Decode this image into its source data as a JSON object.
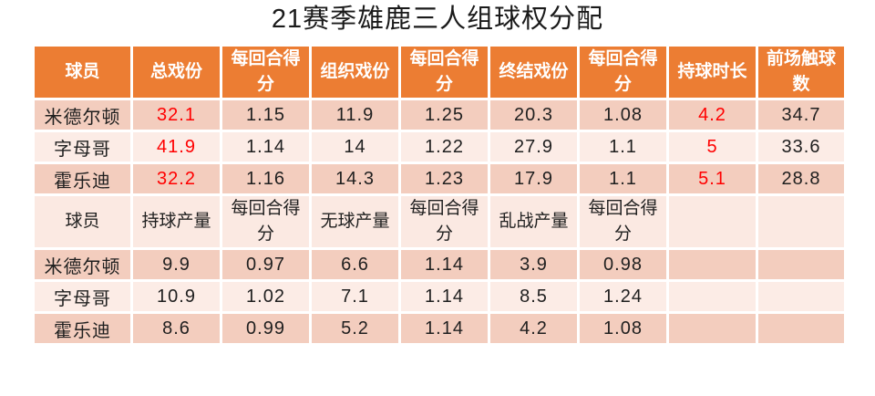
{
  "title": "21赛季雄鹿三人组球权分配",
  "colors": {
    "header_bg": "#EC7D33",
    "header_text": "#FFFFFF",
    "band_dark": "#F3CDBE",
    "band_light": "#FCECE6",
    "plain_header_bg": "#FBE9E2",
    "text": "#1F1F1F",
    "highlight_red": "#FF0000"
  },
  "table": {
    "sections": [
      {
        "header_variant": "accent",
        "columns": [
          "球员",
          "总戏份",
          "每回合得分",
          "组织戏份",
          "每回合得分",
          "终结戏份",
          "每回合得分",
          "持球时长",
          "前场触球数"
        ],
        "rows": [
          {
            "cells": [
              "米德尔顿",
              "32.1",
              "1.15",
              "11.9",
              "1.25",
              "20.3",
              "1.08",
              "4.2",
              "34.7"
            ],
            "red": [
              1,
              7
            ]
          },
          {
            "cells": [
              "字母哥",
              "41.9",
              "1.14",
              "14",
              "1.22",
              "27.9",
              "1.1",
              "5",
              "33.6"
            ],
            "red": [
              1,
              7
            ]
          },
          {
            "cells": [
              "霍乐迪",
              "32.2",
              "1.16",
              "14.3",
              "1.23",
              "17.9",
              "1.1",
              "5.1",
              "28.8"
            ],
            "red": [
              1,
              7
            ]
          }
        ]
      },
      {
        "header_variant": "plain",
        "columns": [
          "球员",
          "持球产量",
          "每回合得分",
          "无球产量",
          "每回合得分",
          "乱战产量",
          "每回合得分",
          "",
          ""
        ],
        "rows": [
          {
            "cells": [
              "米德尔顿",
              "9.9",
              "0.97",
              "6.6",
              "1.14",
              "3.9",
              "0.98",
              "",
              ""
            ],
            "red": []
          },
          {
            "cells": [
              "字母哥",
              "10.9",
              "1.02",
              "7.1",
              "1.14",
              "8.5",
              "1.24",
              "",
              ""
            ],
            "red": []
          },
          {
            "cells": [
              "霍乐迪",
              "8.6",
              "0.99",
              "5.2",
              "1.14",
              "4.2",
              "1.08",
              "",
              ""
            ],
            "red": []
          }
        ]
      }
    ]
  },
  "chart_data": {
    "type": "table",
    "title": "21赛季雄鹿三人组球权分配",
    "sections": [
      {
        "columns": [
          "球员",
          "总戏份",
          "每回合得分",
          "组织戏份",
          "每回合得分",
          "终结戏份",
          "每回合得分",
          "持球时长",
          "前场触球数"
        ],
        "rows": [
          [
            "米德尔顿",
            32.1,
            1.15,
            11.9,
            1.25,
            20.3,
            1.08,
            4.2,
            34.7
          ],
          [
            "字母哥",
            41.9,
            1.14,
            14,
            1.22,
            27.9,
            1.1,
            5,
            33.6
          ],
          [
            "霍乐迪",
            32.2,
            1.16,
            14.3,
            1.23,
            17.9,
            1.1,
            5.1,
            28.8
          ]
        ],
        "red_highlighted_columns": [
          "总戏份",
          "持球时长"
        ]
      },
      {
        "columns": [
          "球员",
          "持球产量",
          "每回合得分",
          "无球产量",
          "每回合得分",
          "乱战产量",
          "每回合得分"
        ],
        "rows": [
          [
            "米德尔顿",
            9.9,
            0.97,
            6.6,
            1.14,
            3.9,
            0.98
          ],
          [
            "字母哥",
            10.9,
            1.02,
            7.1,
            1.14,
            8.5,
            1.24
          ],
          [
            "霍乐迪",
            8.6,
            0.99,
            5.2,
            1.14,
            4.2,
            1.08
          ]
        ]
      }
    ],
    "layout": {
      "header_style": "orange banner, white text (section 1); light pink, dark text (section 2)",
      "row_banding": [
        "dark-pink",
        "light-pink",
        "dark-pink"
      ]
    }
  }
}
